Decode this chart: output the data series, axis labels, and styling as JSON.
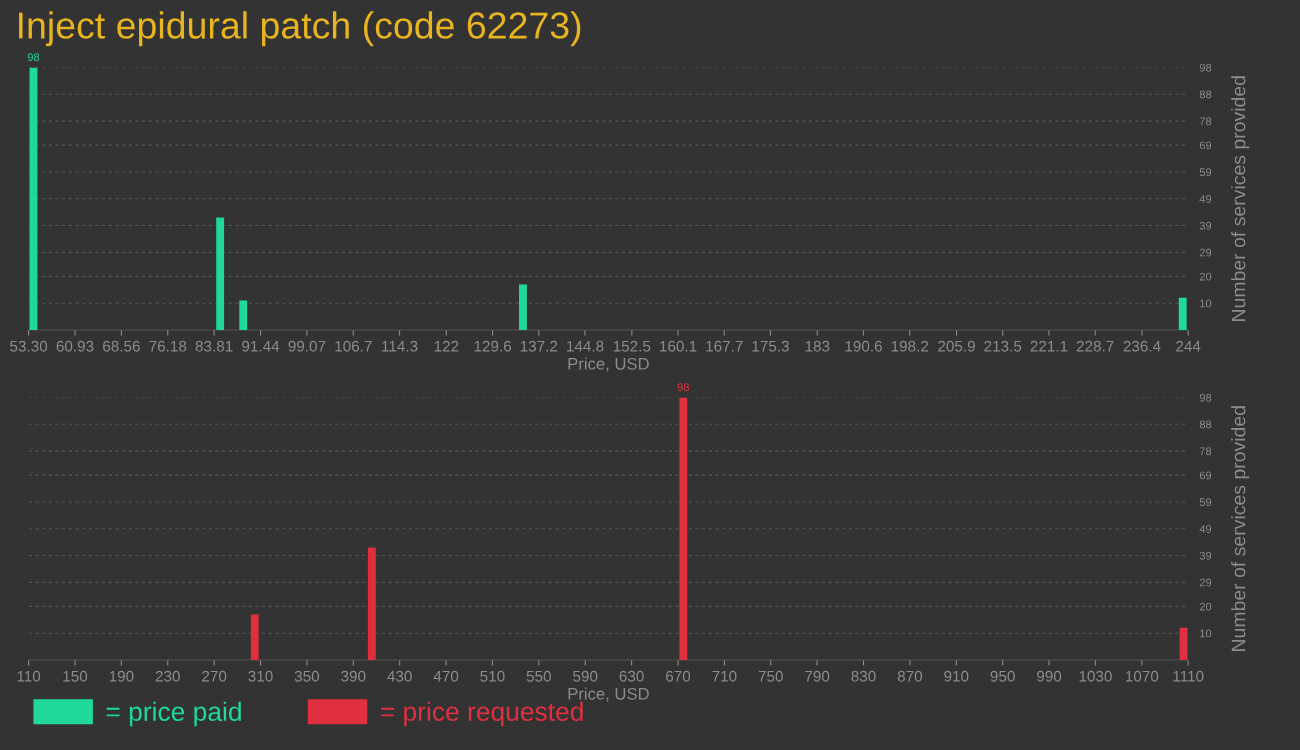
{
  "chart_data": [
    {
      "type": "bar",
      "title": "Inject epidural patch (code 62273)",
      "xlabel": "Price, USD",
      "ylabel": "Number of services provided",
      "x": [
        54.1,
        84.8,
        88.6,
        134.6,
        243.1
      ],
      "series": [
        {
          "name": "= price paid",
          "color": "#1fd99b",
          "values": [
            98,
            42,
            11,
            17,
            12
          ],
          "value_labels": [
            "98",
            null,
            null,
            null,
            null
          ]
        }
      ],
      "xlim": [
        53.3,
        244
      ],
      "xticks": [
        {
          "value": 53.3,
          "label": "53.30"
        },
        60.93,
        68.56,
        76.18,
        83.81,
        91.44,
        99.07,
        106.7,
        114.3,
        122,
        129.6,
        137.2,
        144.8,
        152.5,
        160.1,
        167.7,
        175.3,
        183,
        190.6,
        198.2,
        205.9,
        213.5,
        221.1,
        228.7,
        236.4,
        244
      ],
      "ylim": [
        0,
        98
      ],
      "yticks": [
        10,
        20,
        29,
        39,
        49,
        59,
        69,
        78,
        88,
        98
      ],
      "grid": "y"
    },
    {
      "type": "bar",
      "xlabel": "Price, USD",
      "ylabel": "Number of services provided",
      "x": [
        305,
        406,
        674.6,
        1106
      ],
      "series": [
        {
          "name": "= price requested",
          "color": "#e0303f",
          "values": [
            17,
            42,
            98,
            12
          ],
          "value_labels": [
            null,
            null,
            "98",
            null
          ]
        }
      ],
      "xlim": [
        110,
        1110
      ],
      "xticks": [
        110,
        150,
        190,
        230,
        270,
        310,
        350,
        390,
        430,
        470,
        510,
        550,
        590,
        630,
        670,
        710,
        750,
        790,
        830,
        870,
        910,
        950,
        990,
        1030,
        1070,
        1110
      ],
      "ylim": [
        0,
        98
      ],
      "yticks": [
        10,
        20,
        29,
        39,
        49,
        59,
        69,
        78,
        88,
        98
      ],
      "grid": "y",
      "legend": "bottom left"
    }
  ]
}
